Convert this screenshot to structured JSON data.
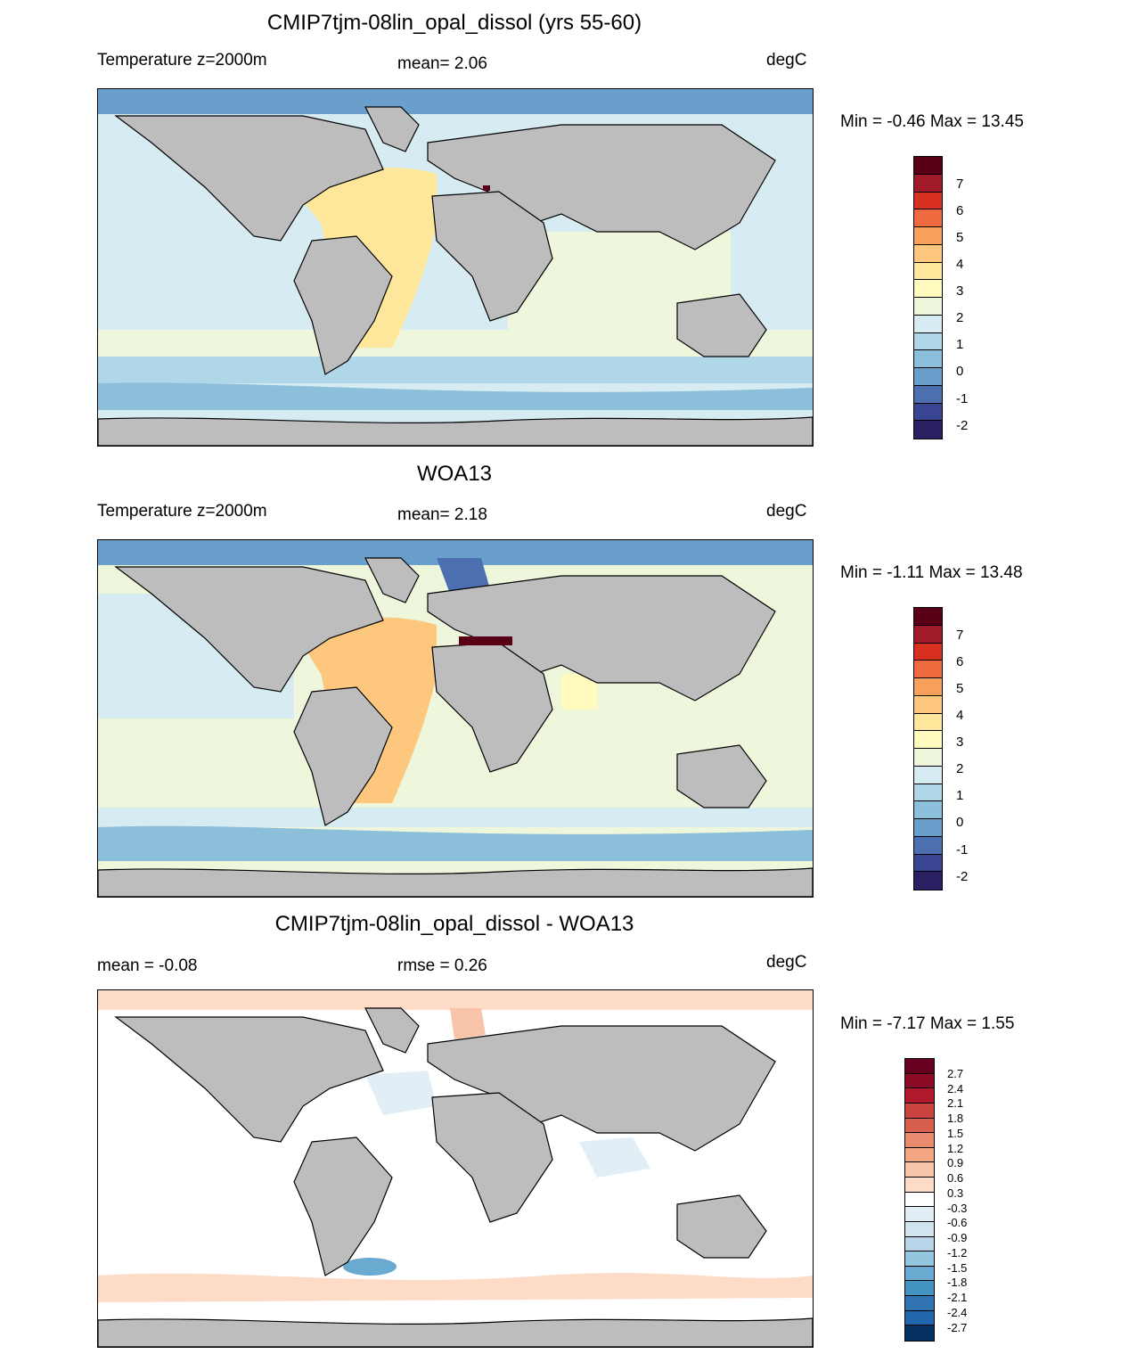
{
  "panels": [
    {
      "title": "CMIP7tjm-08lin_opal_dissol (yrs 55-60)",
      "left_label": "Temperature z=2000m",
      "center_label": "mean=   2.06",
      "unit": "degC",
      "minmax": "Min =  -0.46 Max =  13.45",
      "colorbar_ticks": [
        "7",
        "6",
        "5",
        "4",
        "3",
        "2",
        "1",
        "0",
        "-1",
        "-2"
      ]
    },
    {
      "title": "WOA13",
      "left_label": "Temperature z=2000m",
      "center_label": "mean=   2.18",
      "unit": "degC",
      "minmax": "Min =  -1.11 Max =  13.48",
      "colorbar_ticks": [
        "7",
        "6",
        "5",
        "4",
        "3",
        "2",
        "1",
        "0",
        "-1",
        "-2"
      ]
    },
    {
      "title": "CMIP7tjm-08lin_opal_dissol - WOA13",
      "left_label": "mean =  -0.08",
      "center_label": "rmse =   0.26",
      "unit": "degC",
      "minmax": "Min =  -7.17 Max =   1.55",
      "colorbar_ticks": [
        "2.7",
        "2.4",
        "2.1",
        "1.8",
        "1.5",
        "1.2",
        "0.9",
        "0.6",
        "0.3",
        "-0.3",
        "-0.6",
        "-0.9",
        "-1.2",
        "-1.5",
        "-1.8",
        "-2.1",
        "-2.4",
        "-2.7"
      ]
    }
  ],
  "colors": {
    "land": "#bdbdbd",
    "temp_scale": [
      "#5a0016",
      "#a01a2a",
      "#d7301f",
      "#ee6a3f",
      "#f7a05a",
      "#fdc87e",
      "#fee79a",
      "#fffbbe",
      "#eef6dc",
      "#d6ecf2",
      "#b0d7e8",
      "#8bbfda",
      "#6a9fcb",
      "#4b6fb0",
      "#3a4591",
      "#2c2065"
    ],
    "diff_scale": [
      "#67001f",
      "#8b0a26",
      "#b2182b",
      "#c9433f",
      "#d6604d",
      "#ea8a6e",
      "#f4a582",
      "#f8c5ab",
      "#fddbc7",
      "#ffffff",
      "#e2eef6",
      "#d1e5f0",
      "#b7d4e8",
      "#92c5de",
      "#6aaad0",
      "#4393c3",
      "#2f73b2",
      "#2166ac",
      "#053061"
    ]
  }
}
